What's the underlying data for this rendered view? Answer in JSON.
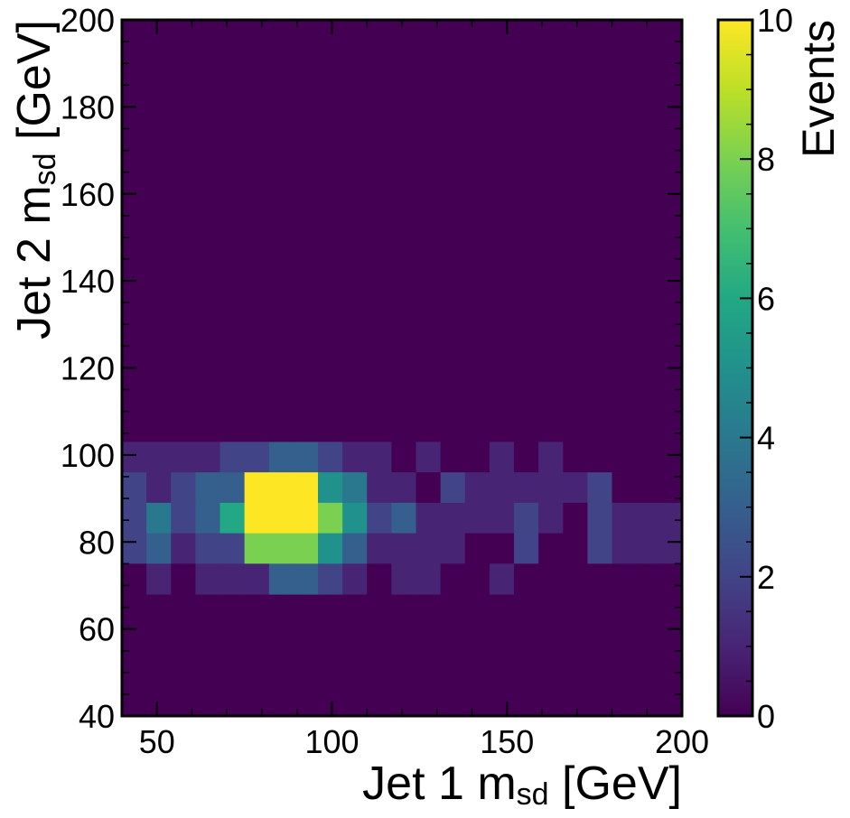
{
  "chart_data": {
    "type": "heatmap",
    "xlabel_main": "Jet 1 m",
    "xlabel_sub": "sd",
    "xlabel_unit": " [GeV]",
    "ylabel_main": "Jet 2 m",
    "ylabel_sub": "sd",
    "ylabel_unit": " [GeV]",
    "colorbar_label": "Events",
    "xlim": [
      40,
      200
    ],
    "ylim": [
      40,
      200
    ],
    "x_ticks": [
      50,
      100,
      150,
      200
    ],
    "y_ticks": [
      40,
      60,
      80,
      100,
      120,
      140,
      160,
      180,
      200
    ],
    "colorbar_range": [
      0,
      10
    ],
    "colorbar_ticks": [
      0,
      2,
      4,
      6,
      8,
      10
    ],
    "colormap": "viridis",
    "x_bin_edges": [
      40,
      47,
      54,
      61,
      68,
      75,
      82,
      89,
      96,
      103,
      110,
      117,
      124,
      131,
      138,
      145,
      152,
      159,
      166,
      173,
      180,
      187,
      194,
      200
    ],
    "y_bin_edges": [
      68,
      75,
      82,
      89,
      96,
      103
    ],
    "z_rows_top_to_bottom": [
      [
        1,
        1,
        1,
        1,
        2,
        2,
        3,
        3,
        2,
        1,
        1,
        0,
        1,
        0,
        0,
        1,
        0,
        1,
        0,
        0,
        0,
        0,
        0
      ],
      [
        2,
        1,
        2,
        3,
        3,
        10,
        10,
        10,
        5,
        4,
        1,
        1,
        0,
        2,
        1,
        1,
        1,
        1,
        1,
        2,
        0,
        0,
        0
      ],
      [
        2,
        4,
        2,
        3,
        6,
        10,
        10,
        10,
        8,
        5,
        2,
        3,
        1,
        1,
        1,
        1,
        2,
        1,
        0,
        2,
        1,
        1,
        1
      ],
      [
        2,
        3,
        1,
        2,
        2,
        8,
        8,
        8,
        5,
        3,
        1,
        1,
        1,
        1,
        0,
        0,
        2,
        0,
        0,
        2,
        1,
        1,
        1
      ],
      [
        0,
        1,
        0,
        1,
        1,
        1,
        3,
        3,
        2,
        1,
        0,
        1,
        1,
        0,
        0,
        1,
        0,
        0,
        0,
        0,
        0,
        0,
        0
      ]
    ]
  }
}
